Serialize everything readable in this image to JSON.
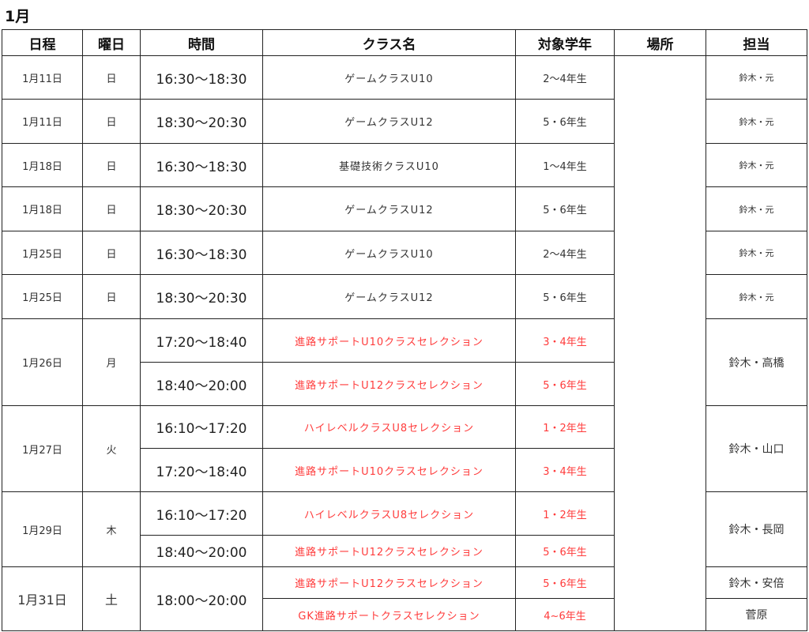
{
  "title": "1月",
  "headers": [
    "日程",
    "曜日",
    "時間",
    "クラス名",
    "対象学年",
    "場所",
    "担当"
  ],
  "rows": [
    {
      "date": "1月11日",
      "day": "日",
      "time": "16:30〜18:30",
      "class": "ゲームクラスU10",
      "grade": "2〜4年生",
      "staff": "鈴木・元"
    },
    {
      "date": "1月11日",
      "day": "日",
      "time": "18:30〜20:30",
      "class": "ゲームクラスU12",
      "grade": "5・6年生",
      "staff": "鈴木・元"
    },
    {
      "date": "1月18日",
      "day": "日",
      "time": "16:30〜18:30",
      "class": "基礎技術クラスU10",
      "grade": "1〜4年生",
      "staff": "鈴木・元"
    },
    {
      "date": "1月18日",
      "day": "日",
      "time": "18:30〜20:30",
      "class": "ゲームクラスU12",
      "grade": "5・6年生",
      "staff": "鈴木・元"
    },
    {
      "date": "1月25日",
      "day": "日",
      "time": "16:30〜18:30",
      "class": "ゲームクラスU10",
      "grade": "2〜4年生",
      "staff": "鈴木・元"
    },
    {
      "date": "1月25日",
      "day": "日",
      "time": "18:30〜20:30",
      "class": "ゲームクラスU12",
      "grade": "5・6年生",
      "staff": "鈴木・元"
    }
  ],
  "groups": [
    {
      "date": "1月26日",
      "day": "月",
      "staff": "鈴木・高橋",
      "sessions": [
        {
          "time": "17:20〜18:40",
          "class": "進路サポートU10クラスセレクション",
          "grade": "3・4年生"
        },
        {
          "time": "18:40〜20:00",
          "class": "進路サポートU12クラスセレクション",
          "grade": "5・6年生"
        }
      ]
    },
    {
      "date": "1月27日",
      "day": "火",
      "staff": "鈴木・山口",
      "sessions": [
        {
          "time": "16:10〜17:20",
          "class": "ハイレベルクラスU8セレクション",
          "grade": "1・2年生"
        },
        {
          "time": "17:20〜18:40",
          "class": "進路サポートU10クラスセレクション",
          "grade": "3・4年生"
        }
      ]
    },
    {
      "date": "1月29日",
      "day": "木",
      "staff": "鈴木・長岡",
      "sessions": [
        {
          "time": "16:10〜17:20",
          "class": "ハイレベルクラスU8セレクション",
          "grade": "1・2年生"
        },
        {
          "time": "18:40〜20:00",
          "class": "進路サポートU12クラスセレクション",
          "grade": "5・6年生"
        }
      ]
    },
    {
      "date": "1月31日",
      "day": "土",
      "time": "18:00〜20:00",
      "sessions": [
        {
          "class": "進路サポートU12クラスセレクション",
          "grade": "5・6年生",
          "staff": "鈴木・安倍"
        },
        {
          "class": "GK進路サポートクラスセレクション",
          "grade": "4~6年生",
          "staff": "菅原"
        }
      ]
    }
  ],
  "colors": {
    "selection_text": "#ff3b3b",
    "text": "#333333"
  }
}
